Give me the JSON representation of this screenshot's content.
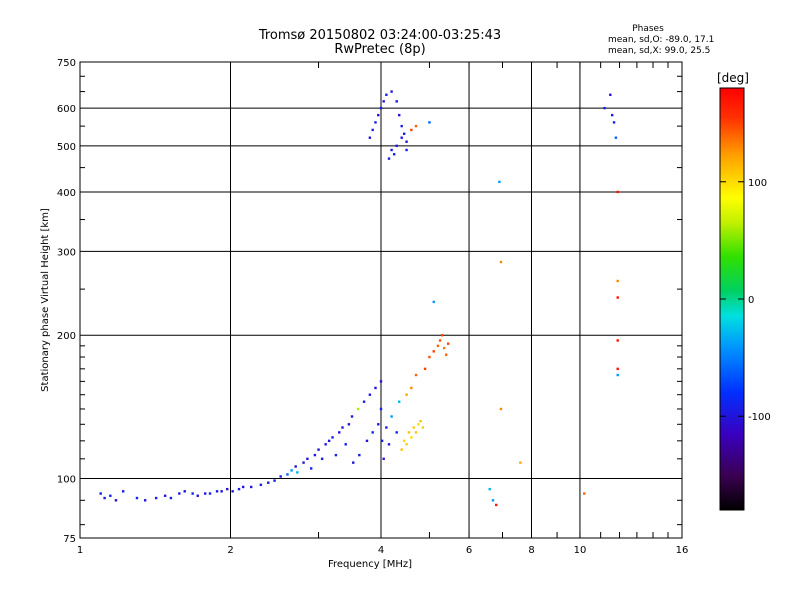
{
  "chart_data": {
    "type": "scatter",
    "title": "Tromsø 20150802 03:24:00-03:25:43",
    "subtitle": "RwPretec (8p)",
    "xlabel": "Frequency [MHz]",
    "ylabel": "Stationary phase Virtual Height [km]",
    "x_scale": "log",
    "y_scale": "log",
    "xlim": [
      1,
      16
    ],
    "ylim": [
      75,
      750
    ],
    "x_ticks": [
      1,
      2,
      4,
      6,
      8,
      10,
      16
    ],
    "x_tick_labels": [
      "1",
      "2",
      "4",
      "6",
      "8",
      "10",
      "16"
    ],
    "y_ticks": [
      75,
      100,
      200,
      300,
      400,
      500,
      600,
      750
    ],
    "y_tick_labels": [
      "75",
      "100",
      "200",
      "300",
      "400",
      "500",
      "600",
      "750"
    ],
    "grid": true,
    "phases_box": {
      "title": "Phases",
      "line_o": "mean, sd,O: -89.0, 17.1",
      "line_x": "mean, sd,X:  99.0, 25.5"
    },
    "colorbar": {
      "label": "[deg]",
      "range": [
        -180,
        180
      ],
      "ticks": [
        -100,
        0,
        100
      ],
      "tick_labels": [
        "-100",
        "0",
        "100"
      ]
    },
    "series": [
      {
        "values": [
          [
            1.1,
            93,
            -95
          ],
          [
            1.12,
            91,
            -100
          ],
          [
            1.15,
            92,
            -90
          ],
          [
            1.18,
            90,
            -105
          ],
          [
            1.22,
            94,
            -95
          ],
          [
            1.3,
            91,
            -90
          ],
          [
            1.35,
            90,
            -100
          ],
          [
            1.42,
            91,
            -95
          ],
          [
            1.48,
            92,
            -100
          ],
          [
            1.52,
            91,
            -90
          ],
          [
            1.58,
            93,
            -95
          ],
          [
            1.62,
            94,
            -100
          ],
          [
            1.68,
            93,
            -92
          ],
          [
            1.72,
            92,
            -97
          ],
          [
            1.78,
            93,
            -100
          ],
          [
            1.82,
            93,
            -90
          ],
          [
            1.88,
            94,
            -95
          ],
          [
            1.92,
            94,
            -100
          ],
          [
            1.97,
            95,
            -105
          ],
          [
            2.02,
            94,
            -95
          ],
          [
            2.08,
            95,
            -90
          ],
          [
            2.12,
            96,
            -100
          ],
          [
            2.2,
            96,
            -95
          ],
          [
            2.3,
            97,
            -92
          ],
          [
            2.38,
            98,
            -100
          ],
          [
            2.45,
            99,
            -95
          ],
          [
            2.52,
            101,
            -90
          ],
          [
            2.6,
            102,
            -60
          ],
          [
            2.65,
            104,
            -40
          ],
          [
            2.7,
            106,
            -100
          ],
          [
            2.72,
            103,
            -30
          ],
          [
            2.8,
            108,
            -95
          ],
          [
            2.85,
            110,
            -100
          ],
          [
            2.9,
            105,
            -90
          ],
          [
            2.95,
            112,
            -95
          ],
          [
            3.0,
            115,
            -100
          ],
          [
            3.05,
            110,
            -92
          ],
          [
            3.1,
            118,
            -97
          ],
          [
            3.15,
            120,
            -100
          ],
          [
            3.2,
            122,
            -95
          ],
          [
            3.25,
            112,
            -90
          ],
          [
            3.3,
            125,
            -100
          ],
          [
            3.35,
            128,
            -95
          ],
          [
            3.4,
            118,
            -90
          ],
          [
            3.45,
            130,
            -100
          ],
          [
            3.5,
            135,
            -95
          ],
          [
            3.52,
            108,
            -100
          ],
          [
            3.6,
            140,
            60
          ],
          [
            3.62,
            112,
            -95
          ],
          [
            3.7,
            145,
            -90
          ],
          [
            3.75,
            120,
            -100
          ],
          [
            3.8,
            150,
            -95
          ],
          [
            3.85,
            125,
            -90
          ],
          [
            3.9,
            155,
            -100
          ],
          [
            3.95,
            130,
            -95
          ],
          [
            4.0,
            160,
            -100
          ],
          [
            4.0,
            140,
            -90
          ],
          [
            4.02,
            120,
            -95
          ],
          [
            4.05,
            110,
            -100
          ],
          [
            4.1,
            128,
            -95
          ],
          [
            4.15,
            118,
            -100
          ],
          [
            4.2,
            135,
            -40
          ],
          [
            4.3,
            125,
            -90
          ],
          [
            4.35,
            145,
            -30
          ],
          [
            4.4,
            115,
            110
          ],
          [
            4.45,
            120,
            100
          ],
          [
            4.5,
            118,
            105
          ],
          [
            4.55,
            125,
            110
          ],
          [
            4.6,
            122,
            100
          ],
          [
            4.65,
            128,
            105
          ],
          [
            4.7,
            125,
            110
          ],
          [
            4.75,
            130,
            100
          ],
          [
            4.8,
            132,
            110
          ],
          [
            4.85,
            128,
            105
          ],
          [
            4.5,
            150,
            120
          ],
          [
            4.6,
            155,
            130
          ],
          [
            4.7,
            165,
            140
          ],
          [
            4.9,
            170,
            150
          ],
          [
            5.0,
            180,
            145
          ],
          [
            5.1,
            185,
            150
          ],
          [
            5.2,
            190,
            140
          ],
          [
            5.25,
            195,
            145
          ],
          [
            5.3,
            200,
            150
          ],
          [
            5.35,
            188,
            135
          ],
          [
            5.4,
            182,
            140
          ],
          [
            5.45,
            192,
            150
          ],
          [
            3.8,
            520,
            -100
          ],
          [
            3.85,
            540,
            -95
          ],
          [
            3.9,
            560,
            -90
          ],
          [
            3.95,
            580,
            -100
          ],
          [
            4.0,
            600,
            -95
          ],
          [
            4.05,
            620,
            -100
          ],
          [
            4.1,
            640,
            -90
          ],
          [
            4.2,
            650,
            -100
          ],
          [
            4.3,
            620,
            -95
          ],
          [
            4.35,
            580,
            -100
          ],
          [
            4.4,
            550,
            -90
          ],
          [
            4.45,
            530,
            -95
          ],
          [
            4.5,
            510,
            -100
          ],
          [
            4.15,
            470,
            -100
          ],
          [
            4.2,
            490,
            -95
          ],
          [
            4.25,
            480,
            -90
          ],
          [
            4.3,
            500,
            -100
          ],
          [
            4.4,
            520,
            -95
          ],
          [
            4.5,
            490,
            -90
          ],
          [
            4.6,
            540,
            150
          ],
          [
            4.7,
            550,
            140
          ],
          [
            5.0,
            560,
            -60
          ],
          [
            5.1,
            235,
            -40
          ],
          [
            6.6,
            95,
            -30
          ],
          [
            6.7,
            90,
            -40
          ],
          [
            6.8,
            88,
            170
          ],
          [
            6.9,
            420,
            -40
          ],
          [
            6.95,
            285,
            130
          ],
          [
            6.95,
            140,
            130
          ],
          [
            7.6,
            108,
            120
          ],
          [
            10.2,
            93,
            140
          ],
          [
            11.2,
            600,
            -90
          ],
          [
            11.5,
            640,
            -100
          ],
          [
            11.6,
            580,
            -95
          ],
          [
            11.7,
            560,
            -90
          ],
          [
            11.8,
            520,
            -60
          ],
          [
            11.9,
            400,
            170
          ],
          [
            11.9,
            260,
            130
          ],
          [
            11.9,
            240,
            170
          ],
          [
            11.9,
            195,
            170
          ],
          [
            11.9,
            170,
            170
          ],
          [
            11.9,
            165,
            -40
          ]
        ]
      }
    ]
  }
}
